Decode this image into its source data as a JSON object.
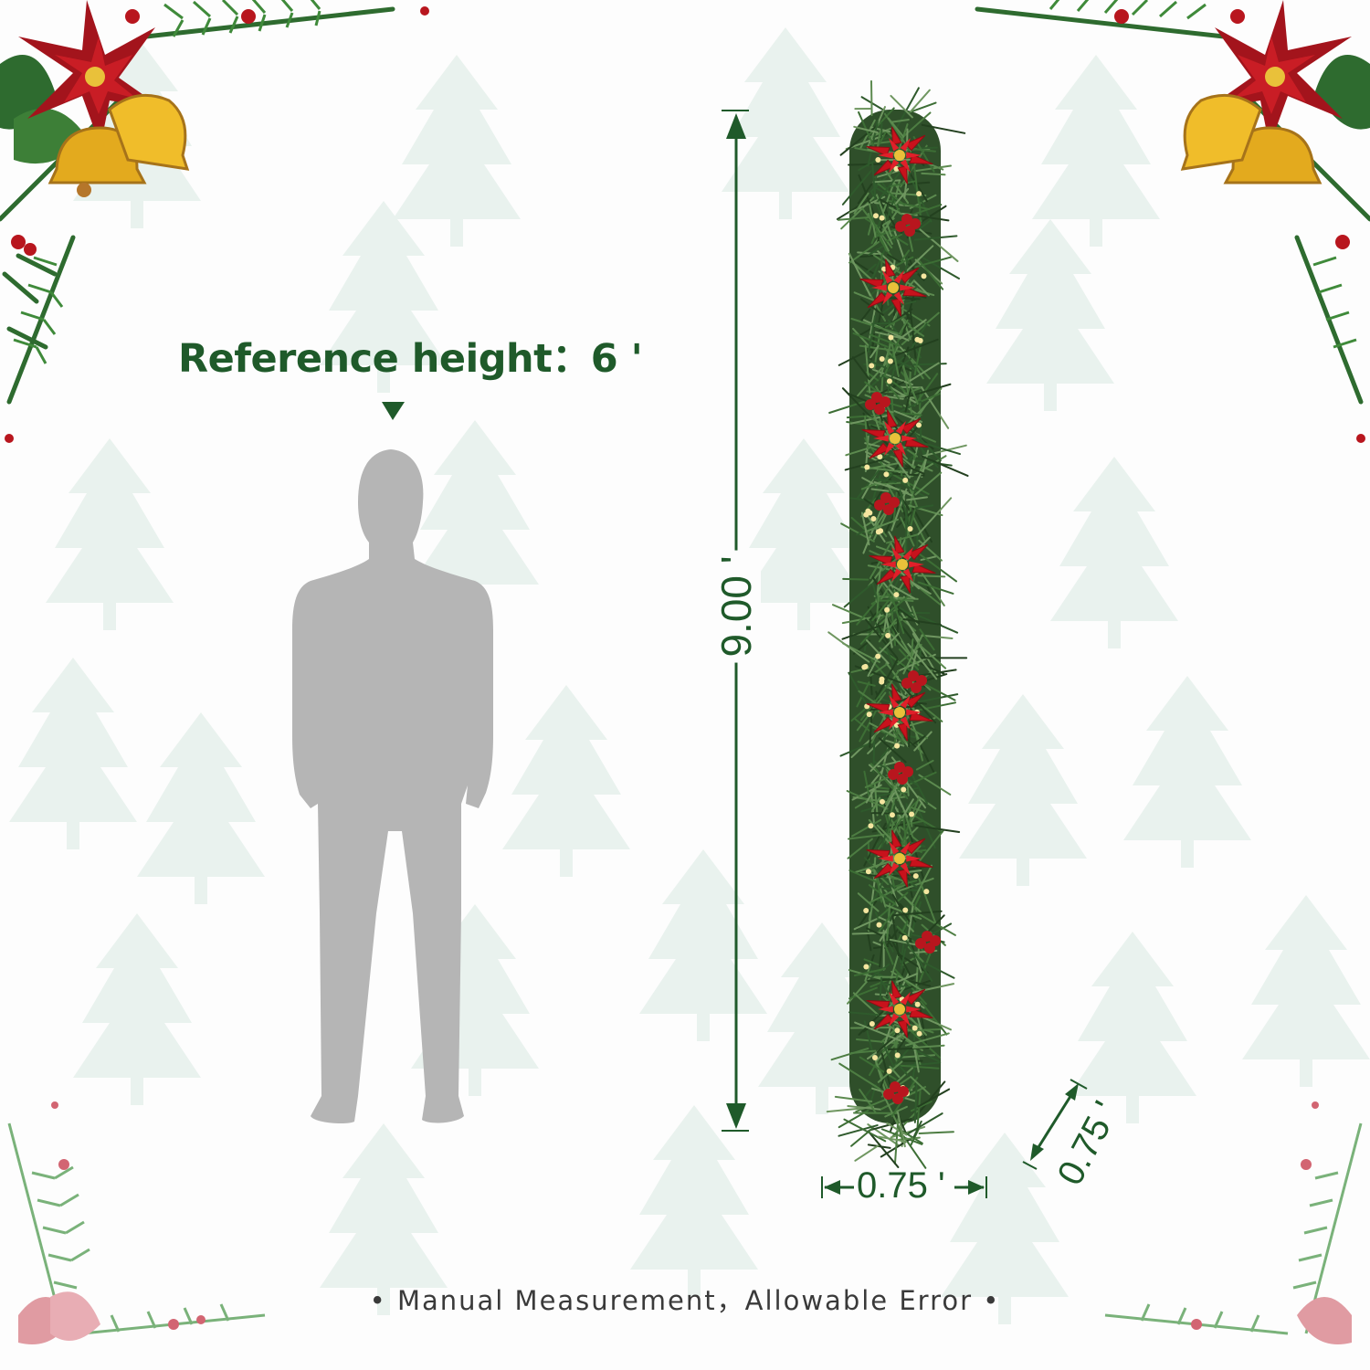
{
  "reference": {
    "label": "Reference height：6 '"
  },
  "dimensions": {
    "height_label": "9.00 '",
    "width_label": "0.75 '",
    "depth_label": "0.75 '"
  },
  "note": "• Manual Measurement，Allowable Error •",
  "colors": {
    "label_green": "#1f5a2a",
    "silhouette_gray": "#b5b5b5",
    "poinsettia_red": "#d01a1f",
    "pine_green": "#2f5a2c",
    "background": "#fdfdfd"
  },
  "icons": [
    "arrow-down-icon",
    "person-silhouette",
    "garland-illustration",
    "christmas-tree-pattern",
    "poinsettia-icon",
    "bell-icon"
  ]
}
